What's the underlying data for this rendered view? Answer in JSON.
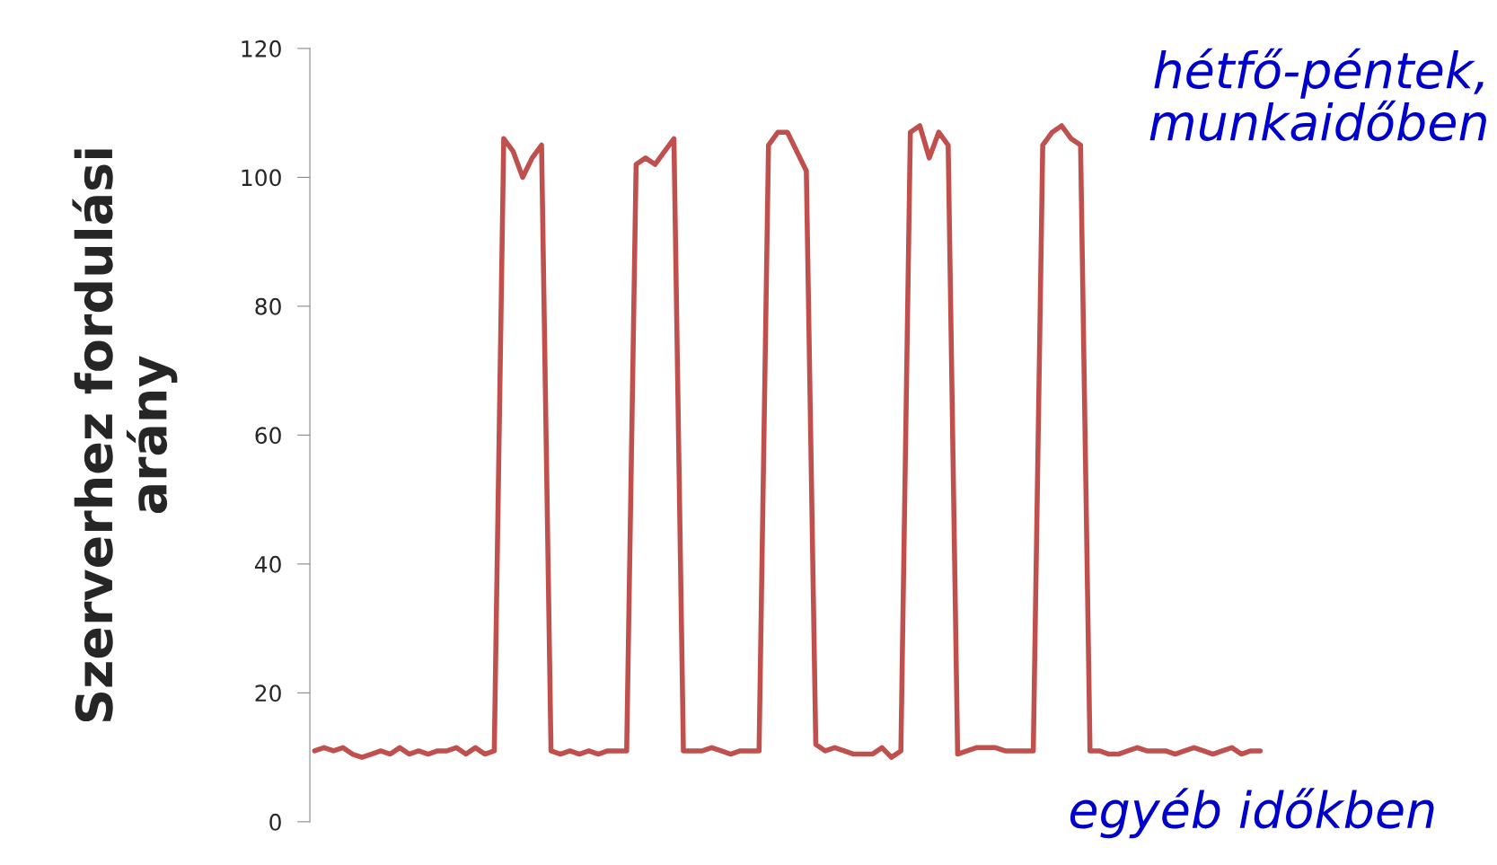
{
  "chart_data": {
    "type": "line",
    "ylabel": "Szerverhez fordulási\narány",
    "categories": [
      null,
      null,
      null,
      null,
      null,
      null,
      null,
      null,
      null,
      null,
      null,
      null,
      null,
      null,
      null,
      null,
      null,
      null,
      null,
      null,
      null,
      null,
      null,
      null,
      null,
      null,
      null,
      null,
      null,
      null,
      null,
      null,
      null,
      null,
      null,
      null,
      null,
      null,
      null,
      null,
      null,
      null,
      null,
      null,
      null,
      null,
      null,
      null,
      null,
      null,
      null,
      null,
      null,
      null,
      null,
      null,
      null,
      null,
      null,
      null,
      null,
      null,
      null,
      null,
      null,
      null,
      null,
      null,
      null,
      null,
      null,
      null,
      null,
      null,
      null,
      null,
      null,
      null,
      null,
      null,
      null,
      null,
      null,
      null,
      null,
      null,
      null,
      null,
      null,
      null,
      null,
      null,
      null,
      null,
      null,
      null,
      null,
      null,
      null,
      null,
      null
    ],
    "series": [
      {
        "color": "#c0504d",
        "values": [
          11,
          11.5,
          11,
          11.5,
          10.5,
          10,
          10.5,
          11,
          10.5,
          11.5,
          10.5,
          11,
          10.5,
          11,
          11,
          11.5,
          10.5,
          11.5,
          10.5,
          11,
          106,
          104,
          100,
          103,
          105,
          11,
          10.5,
          11,
          10.5,
          11,
          10.5,
          11,
          11,
          11,
          102,
          103,
          102,
          104,
          106,
          11,
          11,
          11,
          11.5,
          11,
          10.5,
          11,
          11,
          11,
          105,
          107,
          107,
          104,
          101,
          12,
          11,
          11.5,
          11,
          10.5,
          10.5,
          10.5,
          11.5,
          10,
          11,
          107,
          108,
          103,
          107,
          105,
          10.5,
          11,
          11.5,
          11.5,
          11.5,
          11,
          11,
          11,
          11,
          105,
          107,
          108,
          106,
          105,
          11,
          11,
          10.5,
          10.5,
          11,
          11.5,
          11,
          11,
          11,
          10.5,
          11,
          11.5,
          11,
          10.5,
          11,
          11.5,
          10.5,
          11,
          11
        ]
      }
    ],
    "ylim": [
      0,
      120
    ],
    "yticks": [
      0,
      20,
      40,
      60,
      80,
      100,
      120
    ],
    "tick_labels": "y",
    "grid": false,
    "marker": "none",
    "line_style": "solid",
    "legend": false,
    "annotations": [
      "hétfő-péntek,\nmunkaidőben",
      "egyéb időkben"
    ]
  }
}
